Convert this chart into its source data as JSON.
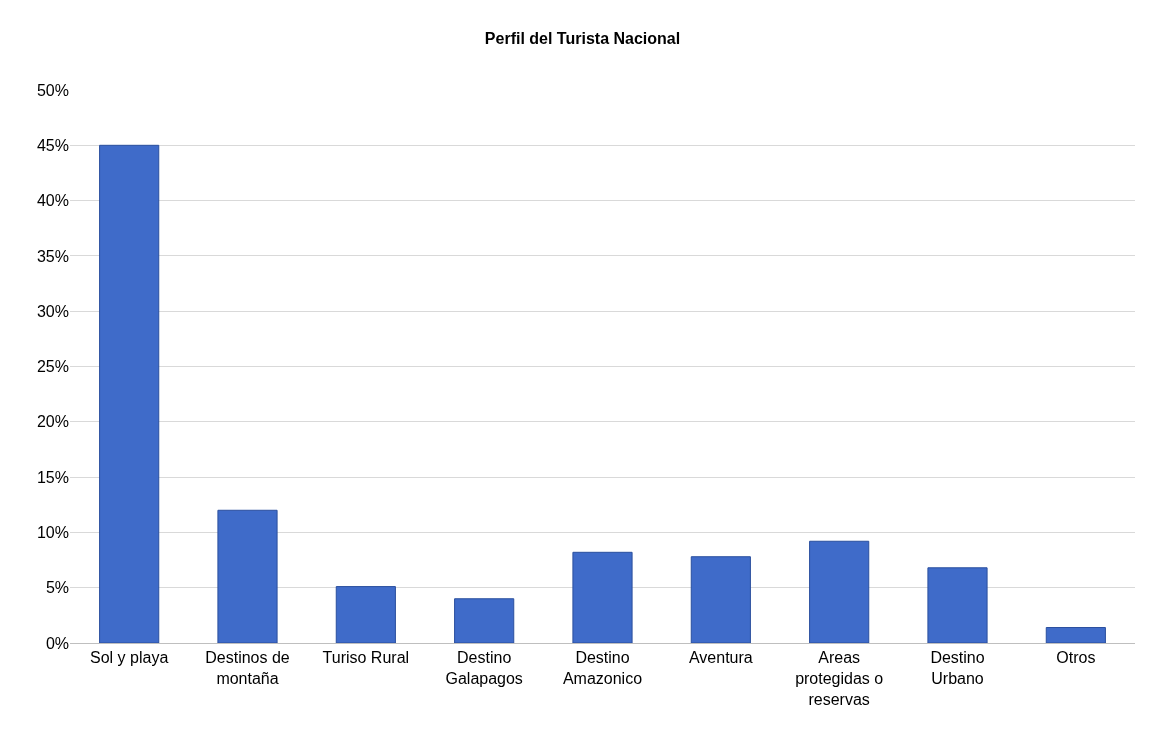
{
  "chart_data": {
    "type": "bar",
    "title": "Perfil del Turista Nacional",
    "categories": [
      "Sol y playa",
      "Destinos de montaña",
      "Turiso Rural",
      "Destino Galapagos",
      "Destino Amazonico",
      "Aventura",
      "Areas protegidas o reservas",
      "Destino Urbano",
      "Otros"
    ],
    "values": [
      45,
      12,
      5.1,
      4,
      8.2,
      7.8,
      9.2,
      6.8,
      1.4
    ],
    "color": "#3f6bc9",
    "ylim": [
      0,
      50
    ],
    "yticks": [
      {
        "value": 0,
        "label": "0%"
      },
      {
        "value": 5,
        "label": "5%"
      },
      {
        "value": 10,
        "label": "10%"
      },
      {
        "value": 15,
        "label": "15%"
      },
      {
        "value": 20,
        "label": "20%"
      },
      {
        "value": 25,
        "label": "25%"
      },
      {
        "value": 30,
        "label": "30%"
      },
      {
        "value": 35,
        "label": "35%"
      },
      {
        "value": 40,
        "label": "40%"
      },
      {
        "value": 45,
        "label": "45%"
      },
      {
        "value": 50,
        "label": "50%"
      }
    ],
    "grid": "y"
  }
}
